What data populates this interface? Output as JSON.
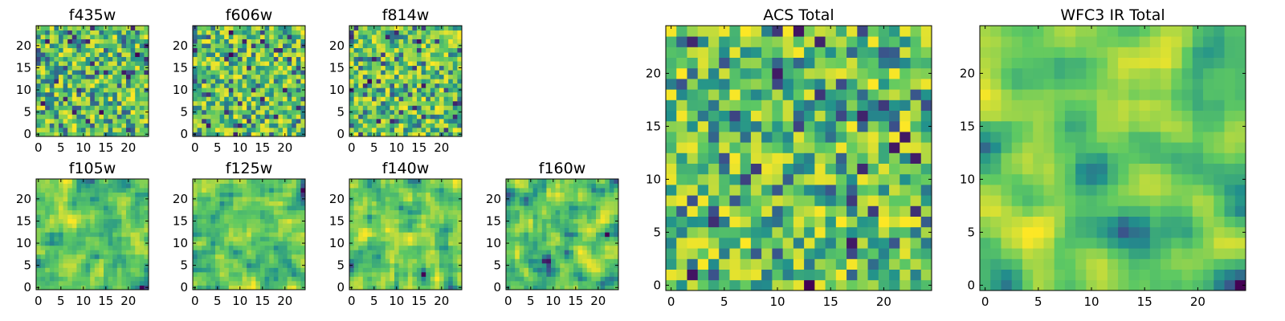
{
  "figure": {
    "colormap": "viridis",
    "colormap_stops": [
      "#440154",
      "#3b528b",
      "#21918c",
      "#5ec962",
      "#fde725"
    ]
  },
  "chart_data": [
    {
      "type": "heatmap",
      "title": "f435w",
      "grid_size": 25,
      "seed": 11,
      "smooth": 0,
      "xticks": [
        0,
        5,
        10,
        15,
        20
      ],
      "yticks": [
        0,
        5,
        10,
        15,
        20
      ],
      "xlim": [
        -0.5,
        24.5
      ],
      "ylim": [
        -0.5,
        24.5
      ],
      "grid": false
    },
    {
      "type": "heatmap",
      "title": "f606w",
      "grid_size": 25,
      "seed": 23,
      "smooth": 0,
      "xticks": [
        0,
        5,
        10,
        15,
        20
      ],
      "yticks": [
        0,
        5,
        10,
        15,
        20
      ],
      "xlim": [
        -0.5,
        24.5
      ],
      "ylim": [
        -0.5,
        24.5
      ],
      "grid": false
    },
    {
      "type": "heatmap",
      "title": "f814w",
      "grid_size": 25,
      "seed": 37,
      "smooth": 0,
      "xticks": [
        0,
        5,
        10,
        15,
        20
      ],
      "yticks": [
        0,
        5,
        10,
        15,
        20
      ],
      "xlim": [
        -0.5,
        24.5
      ],
      "ylim": [
        -0.5,
        24.5
      ],
      "grid": false
    },
    {
      "type": "heatmap",
      "title": "f105w",
      "grid_size": 25,
      "seed": 41,
      "smooth": 1,
      "xticks": [
        0,
        5,
        10,
        15,
        20
      ],
      "yticks": [
        0,
        5,
        10,
        15,
        20
      ],
      "xlim": [
        -0.5,
        24.5
      ],
      "ylim": [
        -0.5,
        24.5
      ],
      "grid": false
    },
    {
      "type": "heatmap",
      "title": "f125w",
      "grid_size": 25,
      "seed": 53,
      "smooth": 1,
      "xticks": [
        0,
        5,
        10,
        15,
        20
      ],
      "yticks": [
        0,
        5,
        10,
        15,
        20
      ],
      "xlim": [
        -0.5,
        24.5
      ],
      "ylim": [
        -0.5,
        24.5
      ],
      "grid": false
    },
    {
      "type": "heatmap",
      "title": "f140w",
      "grid_size": 25,
      "seed": 67,
      "smooth": 1,
      "xticks": [
        0,
        5,
        10,
        15,
        20
      ],
      "yticks": [
        0,
        5,
        10,
        15,
        20
      ],
      "xlim": [
        -0.5,
        24.5
      ],
      "ylim": [
        -0.5,
        24.5
      ],
      "grid": false
    },
    {
      "type": "heatmap",
      "title": "f160w",
      "grid_size": 25,
      "seed": 79,
      "smooth": 1,
      "xticks": [
        0,
        5,
        10,
        15,
        20
      ],
      "yticks": [
        0,
        5,
        10,
        15,
        20
      ],
      "xlim": [
        -0.5,
        24.5
      ],
      "ylim": [
        -0.5,
        24.5
      ],
      "grid": false
    },
    {
      "type": "heatmap",
      "title": "ACS Total",
      "grid_size": 25,
      "seed": 97,
      "smooth": 0,
      "xticks": [
        0,
        5,
        10,
        15,
        20
      ],
      "yticks": [
        0,
        5,
        10,
        15,
        20
      ],
      "xlim": [
        -0.5,
        24.5
      ],
      "ylim": [
        -0.5,
        24.5
      ],
      "grid": false
    },
    {
      "type": "heatmap",
      "title": "WFC3 IR Total",
      "grid_size": 25,
      "seed": 131,
      "smooth": 2,
      "xticks": [
        0,
        5,
        10,
        15,
        20
      ],
      "yticks": [
        0,
        5,
        10,
        15,
        20
      ],
      "xlim": [
        -0.5,
        24.5
      ],
      "ylim": [
        -0.5,
        24.5
      ],
      "grid": false
    }
  ]
}
